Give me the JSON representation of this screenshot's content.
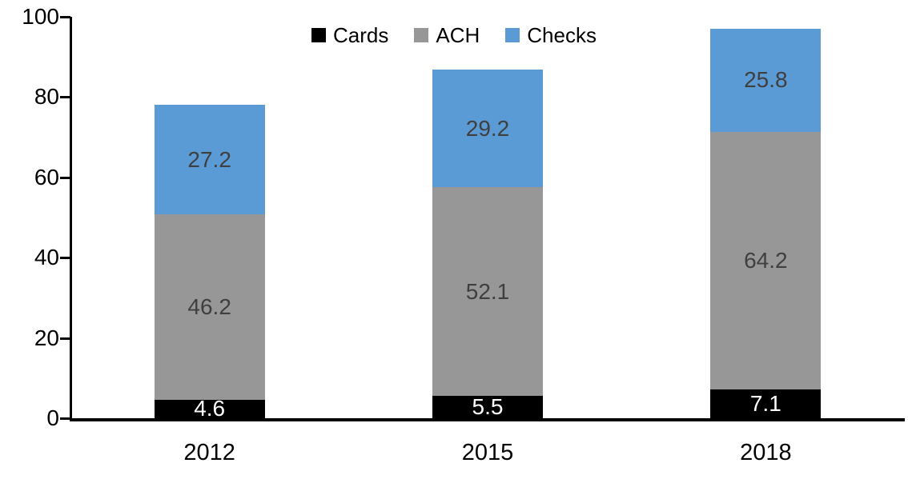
{
  "chart_data": {
    "type": "bar",
    "stacked": true,
    "title": "",
    "xlabel": "",
    "ylabel": "",
    "categories": [
      "2012",
      "2015",
      "2018"
    ],
    "series": [
      {
        "name": "Cards",
        "color": "#000000",
        "label_color": "#ffffff",
        "values": [
          4.6,
          5.5,
          7.1
        ]
      },
      {
        "name": "ACH",
        "color": "#979797",
        "label_color": "#3f3f3f",
        "values": [
          46.2,
          52.1,
          64.2
        ]
      },
      {
        "name": "Checks",
        "color": "#5b9bd5",
        "label_color": "#3f3f3f",
        "values": [
          27.2,
          29.2,
          25.8
        ]
      }
    ],
    "totals": [
      78.0,
      86.8,
      97.1
    ],
    "ylim": [
      0,
      100
    ],
    "yticks": [
      0,
      20,
      40,
      60,
      80,
      100
    ],
    "grid": false,
    "legend": {
      "position": "top",
      "entries": [
        "Cards",
        "ACH",
        "Checks"
      ]
    },
    "data_labels_shown": true,
    "axis_color": "#000000"
  }
}
